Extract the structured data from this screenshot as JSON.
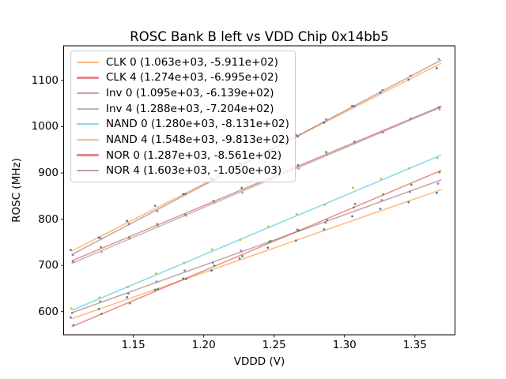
{
  "chart_data": {
    "type": "scatter",
    "title": "ROSC Bank B left vs VDD Chip 0x14bb5",
    "xlabel": "VDDD (V)",
    "ylabel": "ROSC (MHz)",
    "xlim": [
      1.1005,
      1.3785
    ],
    "ylim": [
      550,
      1175
    ],
    "grid": false,
    "legend_position": "upper left",
    "xticks": {
      "values": [
        1.15,
        1.2,
        1.25,
        1.3,
        1.35
      ],
      "labels": [
        "1.15",
        "1.20",
        "1.25",
        "1.30",
        "1.35"
      ]
    },
    "yticks": {
      "values": [
        600,
        700,
        800,
        900,
        1000,
        1100
      ],
      "labels": [
        "600",
        "700",
        "800",
        "900",
        "1000",
        "1100"
      ]
    },
    "x": [
      1.1065,
      1.1265,
      1.1465,
      1.1665,
      1.1865,
      1.2065,
      1.2265,
      1.2465,
      1.2665,
      1.2865,
      1.3065,
      1.3265,
      1.3465,
      1.3665
    ],
    "line_x_range": [
      1.1065,
      1.3685
    ],
    "line_alpha": 0.5,
    "series": [
      {
        "name": "CLK 0",
        "label": "CLK 0 (1.063e+03, -5.911e+02)",
        "fit": {
          "slope": 1063,
          "intercept": -591.1
        },
        "line_color": "#ff7f0e",
        "point_color": "#1f77b4",
        "x_offset": -0.001,
        "y": [
          587.6,
          605.9,
          631.2,
          647.4,
          671.7,
          688.9,
          715.2,
          738.5,
          753.7,
          778.0,
          806.2,
          822.5,
          836.8,
          857.0
        ]
      },
      {
        "name": "CLK 4",
        "label": "CLK 4 (1.274e+03, -6.995e+02)",
        "fit": {
          "slope": 1274,
          "intercept": -699.5
        },
        "line_color": "#d62728",
        "point_color": "#2ca02c",
        "x_offset": 0.0005,
        "y": [
          708.8,
          739.3,
          760.8,
          789.2,
          809.7,
          839.2,
          867.7,
          887.2,
          916.6,
          945.1,
          967.6,
          988.1,
          1017.6,
          1042.0
        ]
      },
      {
        "name": "Inv 0",
        "label": "Inv 0 (1.095e+03, -6.139e+02)",
        "fit": {
          "slope": 1095,
          "intercept": -613.9
        },
        "line_color": "#8c564b",
        "point_color": "#9467bd",
        "x_offset": 0.0,
        "y": [
          597.3,
          622.2,
          639.1,
          665.0,
          688.9,
          705.8,
          731.7,
          750.6,
          777.5,
          792.4,
          825.3,
          841.2,
          859.1,
          877.0
        ]
      },
      {
        "name": "Inv 4",
        "label": "Inv 4 (1.288e+03, -7.204e+02)",
        "fit": {
          "slope": 1288,
          "intercept": -720.4
        },
        "line_color": "#7f7f7f",
        "point_color": "#e377c2",
        "x_offset": 0.001,
        "y": [
          707.4,
          729.2,
          757.9,
          785.7,
          807.4,
          836.2,
          857.0,
          886.7,
          909.5,
          941.2,
          965.0,
          987.8,
          1017.5,
          1037.3
        ]
      },
      {
        "name": "NAND 0",
        "label": "NAND 0 (1.280e+03, -8.131e+02)",
        "fit": {
          "slope": 1280,
          "intercept": -813.1
        },
        "line_color": "#17becf",
        "point_color": "#bcbd22",
        "x_offset": -0.0005,
        "y": [
          606.9,
          630.5,
          653.1,
          682.7,
          705.3,
          734.9,
          755.5,
          784.1,
          810.7,
          831.3,
          867.9,
          887.5,
          910.1,
          932.7
        ]
      },
      {
        "name": "NAND 4",
        "label": "NAND 4 (1.548e+03, -9.813e+02)",
        "fit": {
          "slope": 1548,
          "intercept": -981.3
        },
        "line_color": "#ff7f0e",
        "point_color": "#1f77b4",
        "x_offset": -0.001,
        "y": [
          733.3,
          760.3,
          796.2,
          829.2,
          854.2,
          888.1,
          921.1,
          948.0,
          982.0,
          1009.0,
          1044.9,
          1073.9,
          1101.8,
          1126.8
        ]
      },
      {
        "name": "NOR 0",
        "label": "NOR 0 (1.287e+03, -8.561e+02)",
        "fit": {
          "slope": 1287,
          "intercept": -856.1
        },
        "line_color": "#d62728",
        "point_color": "#2ca02c",
        "x_offset": 0.001,
        "y": [
          570.6,
          595.3,
          618.1,
          648.8,
          670.6,
          699.3,
          720.1,
          752.8,
          775.5,
          798.3,
          833.0,
          853.8,
          874.5,
          901.3
        ]
      },
      {
        "name": "NOR 4",
        "label": "NOR 4 (1.603e+03, -1.050e+03)",
        "fit": {
          "slope": 1603,
          "intercept": -1050
        },
        "line_color": "#8c564b",
        "point_color": "#9467bd",
        "x_offset": 0.0005,
        "y": [
          722.5,
          758.6,
          789.6,
          817.7,
          854.7,
          883.8,
          919.8,
          949.9,
          978.9,
          1016.0,
          1044.1,
          1079.1,
          1110.2,
          1146.2
        ]
      }
    ]
  }
}
